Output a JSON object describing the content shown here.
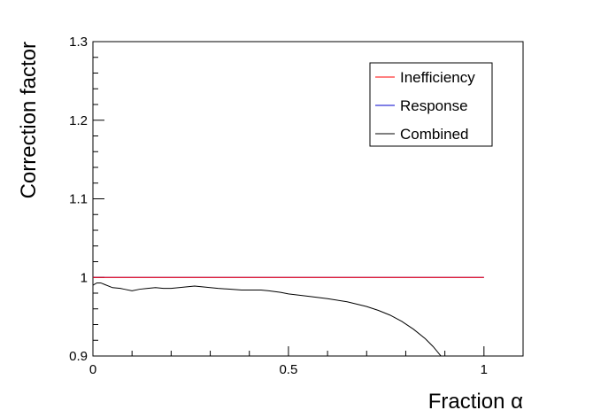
{
  "chart_data": {
    "type": "line",
    "title": "",
    "xlabel": "Fraction α",
    "ylabel": "Correction factor",
    "xlim": [
      0,
      1.1
    ],
    "ylim": [
      0.9,
      1.3
    ],
    "x_ticks": [
      {
        "value": 0,
        "label": "0"
      },
      {
        "value": 0.5,
        "label": "0.5"
      },
      {
        "value": 1,
        "label": "1"
      }
    ],
    "y_ticks": [
      {
        "value": 0.9,
        "label": "0.9"
      },
      {
        "value": 1.0,
        "label": "1"
      },
      {
        "value": 1.1,
        "label": "1.1"
      },
      {
        "value": 1.2,
        "label": "1.2"
      },
      {
        "value": 1.3,
        "label": "1.3"
      }
    ],
    "grid": false,
    "legend_position": "top-right",
    "series": [
      {
        "name": "Inefficiency",
        "color": "#ff0000",
        "x": [
          0.0,
          1.0
        ],
        "y": [
          1.0,
          1.0
        ]
      },
      {
        "name": "Response",
        "color": "#0000cc",
        "x": [
          0.0,
          1.0
        ],
        "y": [
          1.0,
          1.0
        ]
      },
      {
        "name": "Combined",
        "color": "#000000",
        "x": [
          0.0,
          0.01,
          0.02,
          0.03,
          0.05,
          0.07,
          0.08,
          0.1,
          0.12,
          0.14,
          0.16,
          0.18,
          0.2,
          0.22,
          0.24,
          0.26,
          0.28,
          0.3,
          0.32,
          0.35,
          0.38,
          0.4,
          0.43,
          0.45,
          0.48,
          0.5,
          0.55,
          0.6,
          0.65,
          0.7,
          0.73,
          0.76,
          0.79,
          0.82,
          0.85,
          0.87,
          0.89,
          0.9
        ],
        "y": [
          0.99,
          0.993,
          0.993,
          0.991,
          0.987,
          0.986,
          0.985,
          0.983,
          0.985,
          0.986,
          0.987,
          0.986,
          0.986,
          0.987,
          0.988,
          0.989,
          0.988,
          0.987,
          0.986,
          0.985,
          0.984,
          0.984,
          0.984,
          0.983,
          0.981,
          0.979,
          0.976,
          0.973,
          0.969,
          0.963,
          0.958,
          0.952,
          0.944,
          0.934,
          0.922,
          0.912,
          0.9,
          0.893
        ]
      }
    ]
  }
}
